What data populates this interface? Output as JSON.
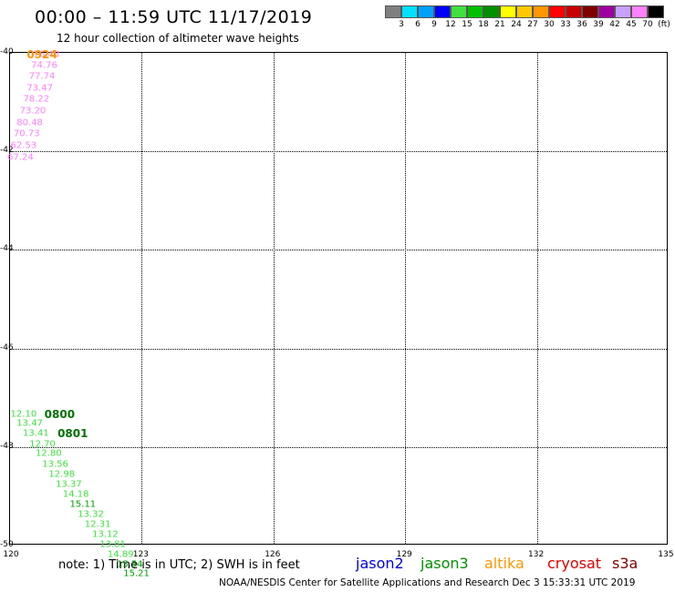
{
  "title": "00:00 – 11:59 UTC 11/17/2019",
  "subtitle": "12 hour collection of altimeter wave heights",
  "legend": {
    "colors": [
      "#808080",
      "#00e0ff",
      "#00a0ff",
      "#0000ff",
      "#40e040",
      "#00c000",
      "#009000",
      "#ffff00",
      "#ffc800",
      "#ff9600",
      "#ff0000",
      "#c80000",
      "#800000",
      "#a000a0",
      "#c8a0ff",
      "#ff80ff",
      "#000000"
    ],
    "labels": [
      "3",
      "6",
      "9",
      "12",
      "15",
      "18",
      "21",
      "24",
      "27",
      "30",
      "33",
      "36",
      "39",
      "42",
      "45",
      "70",
      "(ft)"
    ]
  },
  "axes": {
    "y_labels": [
      "-40",
      "-42",
      "-44",
      "-46",
      "-48",
      "-50"
    ],
    "x_labels": [
      "120",
      "123",
      "126",
      "129",
      "132",
      "135"
    ],
    "lat_range": [
      -50,
      -40
    ],
    "lon_range": [
      120,
      135
    ]
  },
  "tracks": [
    {
      "time": "0924",
      "time_color": "#ff9600",
      "points": [
        {
          "lon": 120.85,
          "lat": -40.05,
          "swh": "76.48",
          "color": "#ff80ff"
        },
        {
          "lon": 120.95,
          "lat": -40.05,
          "swh": "",
          "color": "#ff80ff"
        },
        {
          "lon": 120.8,
          "lat": -40.27,
          "swh": "74.76",
          "color": "#ff80ff"
        },
        {
          "lon": 120.75,
          "lat": -40.5,
          "swh": "77.74",
          "color": "#ff80ff"
        },
        {
          "lon": 120.7,
          "lat": -40.74,
          "swh": "73.47",
          "color": "#ff80ff"
        },
        {
          "lon": 120.62,
          "lat": -40.96,
          "swh": "78.22",
          "color": "#ff80ff"
        },
        {
          "lon": 120.54,
          "lat": -41.2,
          "swh": "73.20",
          "color": "#ff80ff"
        },
        {
          "lon": 120.47,
          "lat": -41.44,
          "swh": "80.48",
          "color": "#ff80ff"
        },
        {
          "lon": 120.4,
          "lat": -41.67,
          "swh": "70.73",
          "color": "#ff80ff"
        },
        {
          "lon": 120.33,
          "lat": -41.91,
          "swh": "62.53",
          "color": "#ff80ff"
        },
        {
          "lon": 120.26,
          "lat": -42.14,
          "swh": "67.24",
          "color": "#ff80ff"
        }
      ]
    },
    {
      "time": "0800",
      "time_color": "#007000",
      "points": [
        {
          "lon": 120.33,
          "lat": -47.35,
          "swh": "12.10",
          "color": "#40e040"
        },
        {
          "lon": 120.47,
          "lat": -47.55,
          "swh": "13.47",
          "color": "#40e040"
        },
        {
          "lon": 120.61,
          "lat": -47.75,
          "swh": "13.41",
          "color": "#40e040"
        },
        {
          "lon": 120.76,
          "lat": -47.96,
          "swh": "12.70",
          "color": "#40e040"
        },
        {
          "lon": 120.9,
          "lat": -48.16,
          "swh": "12.80",
          "color": "#40e040"
        },
        {
          "lon": 121.05,
          "lat": -48.37,
          "swh": "13.56",
          "color": "#40e040"
        },
        {
          "lon": 121.2,
          "lat": -48.57,
          "swh": "12.98",
          "color": "#40e040"
        },
        {
          "lon": 121.36,
          "lat": -48.78,
          "swh": "13.37",
          "color": "#40e040"
        },
        {
          "lon": 121.52,
          "lat": -48.98,
          "swh": "14.18",
          "color": "#40e040"
        },
        {
          "lon": 121.68,
          "lat": -49.19,
          "swh": "15.11",
          "color": "#00a000"
        },
        {
          "lon": 121.86,
          "lat": -49.39,
          "swh": "13.32",
          "color": "#40e040"
        },
        {
          "lon": 122.02,
          "lat": -49.6,
          "swh": "12.31",
          "color": "#40e040"
        },
        {
          "lon": 122.19,
          "lat": -49.8,
          "swh": "13.12",
          "color": "#40e040"
        },
        {
          "lon": 122.36,
          "lat": -50.0,
          "swh": "13.81",
          "color": "#40e040"
        },
        {
          "lon": 122.54,
          "lat": -50.2,
          "swh": "14.89",
          "color": "#40e040"
        },
        {
          "lon": 122.75,
          "lat": -50.4,
          "swh": "15.54",
          "color": "#00a000"
        },
        {
          "lon": 122.9,
          "lat": -50.6,
          "swh": "15.21",
          "color": "#00a000"
        }
      ]
    },
    {
      "time": "0801",
      "time_color": "#007000",
      "points": []
    }
  ],
  "note": "note:  1) Time is in UTC;  2) SWH is in feet",
  "satellites": [
    {
      "name": "jason2",
      "color": "#0000dd"
    },
    {
      "name": "jason3",
      "color": "#009000"
    },
    {
      "name": "altika",
      "color": "#ff9600"
    },
    {
      "name": "cryosat",
      "color": "#dd0000"
    },
    {
      "name": "s3a",
      "color": "#800000"
    }
  ],
  "credit": "NOAA/NESDIS Center for Satellite Applications and Research     Dec  3 15:33:31 UTC 2019"
}
